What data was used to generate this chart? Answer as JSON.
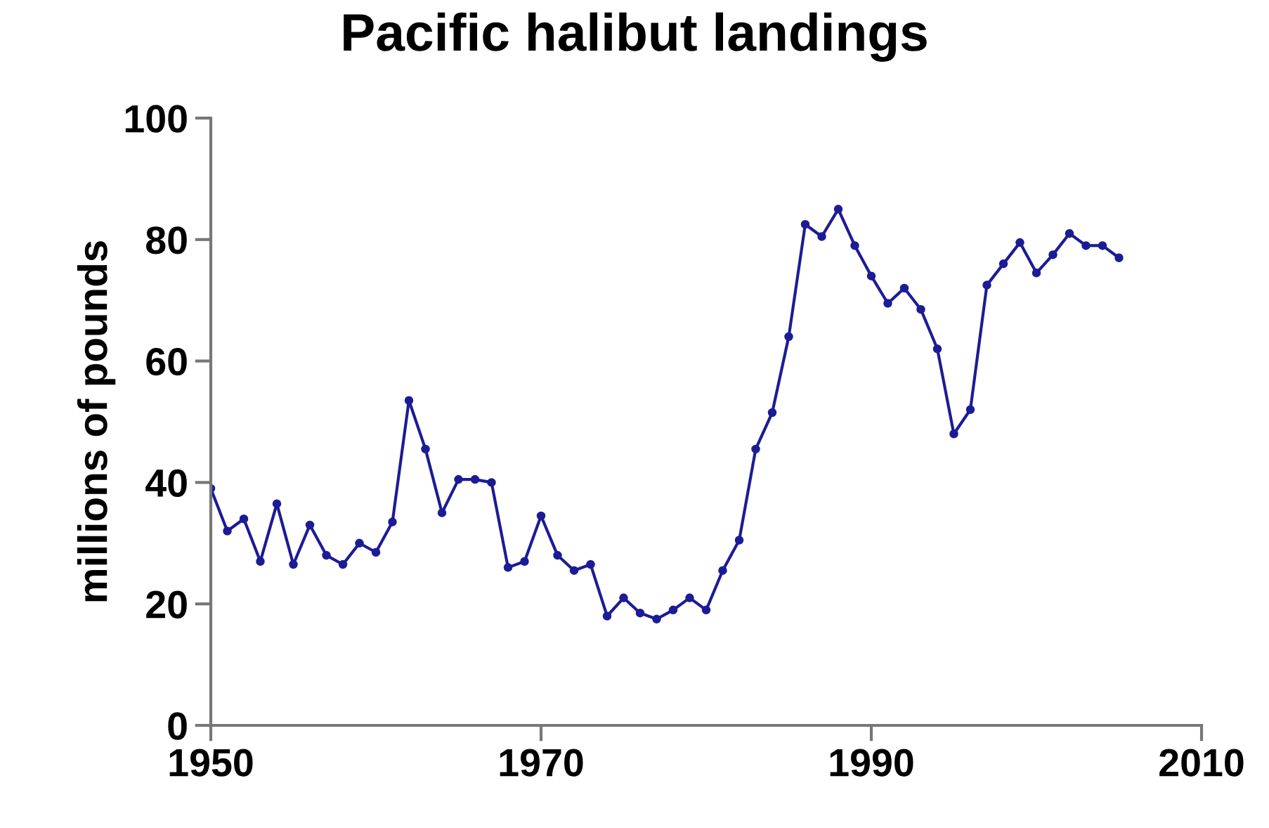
{
  "chart_data": {
    "type": "line",
    "title": "Pacific halibut landings",
    "ylabel": "millions of pounds",
    "x": [
      1950,
      1951,
      1952,
      1953,
      1954,
      1955,
      1956,
      1957,
      1958,
      1959,
      1960,
      1961,
      1962,
      1963,
      1964,
      1965,
      1966,
      1967,
      1968,
      1969,
      1970,
      1971,
      1972,
      1973,
      1974,
      1975,
      1976,
      1977,
      1978,
      1979,
      1980,
      1981,
      1982,
      1983,
      1984,
      1985,
      1986,
      1987,
      1988,
      1989,
      1990,
      1991,
      1992,
      1993,
      1994,
      1995,
      1996,
      1997,
      1998,
      1999,
      2000,
      2001,
      2002,
      2003,
      2004,
      2005
    ],
    "series": [
      {
        "color": "#1c1c96",
        "values": [
          39,
          32,
          34,
          27,
          36.5,
          26.5,
          33,
          28,
          26.5,
          30,
          28.5,
          33.5,
          53.5,
          45.5,
          35,
          40.5,
          40.5,
          40,
          26,
          27,
          34.5,
          28,
          25.5,
          26.5,
          18,
          21,
          18.5,
          17.5,
          19,
          21,
          19,
          25.5,
          30.5,
          45.5,
          51.5,
          64,
          82.5,
          80.5,
          85,
          79,
          74,
          69.5,
          72,
          68.5,
          62,
          48,
          52,
          72.5,
          76,
          79.5,
          74.5,
          77.5,
          81,
          79,
          79,
          77
        ]
      }
    ],
    "xlim": [
      1950,
      2010
    ],
    "xticks": [
      1950,
      1970,
      1990,
      2010
    ],
    "ylim": [
      0,
      100
    ],
    "yticks": [
      0,
      20,
      40,
      60,
      80,
      100
    ],
    "grid": false,
    "legend": false,
    "marker": "circle",
    "line_style": "solid"
  }
}
